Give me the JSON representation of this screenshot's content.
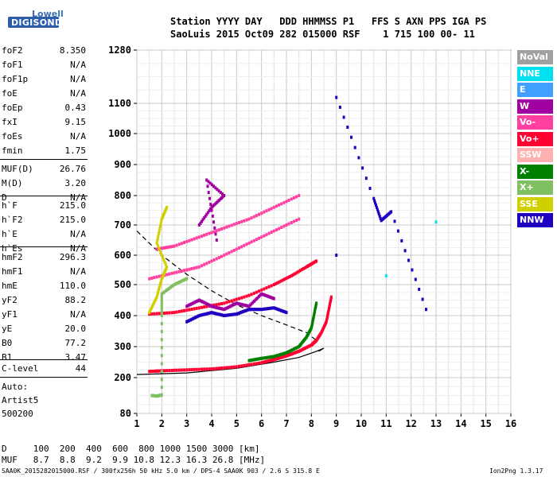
{
  "header": {
    "logo_top": "Lowell",
    "logo_bottom": "DIGISONDE",
    "line1": "Station YYYY DAY   DDD HHMMSS P1   FFS S AXN PPS IGA PS",
    "line2": "SaoLuis 2015 Oct09 282 015000 RSF    1 715 100 00- 11"
  },
  "params_group1": [
    {
      "name": "foF2",
      "value": "8.350"
    },
    {
      "name": "foF1",
      "value": "N/A"
    },
    {
      "name": "foF1p",
      "value": "N/A"
    },
    {
      "name": "foE",
      "value": "N/A"
    },
    {
      "name": "foEp",
      "value": "0.43"
    },
    {
      "name": "fxI",
      "value": "9.15"
    },
    {
      "name": "foEs",
      "value": "N/A"
    },
    {
      "name": "fmin",
      "value": "1.75"
    }
  ],
  "params_group2": [
    {
      "name": "MUF(D)",
      "value": "26.76"
    },
    {
      "name": "M(D)",
      "value": "3.20"
    },
    {
      "name": "D",
      "value": "N/A"
    }
  ],
  "params_group3": [
    {
      "name": "h`F",
      "value": "215.0"
    },
    {
      "name": "h`F2",
      "value": "215.0"
    },
    {
      "name": "h`E",
      "value": "N/A"
    },
    {
      "name": "h`Es",
      "value": "N/A"
    }
  ],
  "params_group4": [
    {
      "name": "hmF2",
      "value": "296.3"
    },
    {
      "name": "hmF1",
      "value": "N/A"
    },
    {
      "name": "hmE",
      "value": "110.0"
    },
    {
      "name": "yF2",
      "value": "88.2"
    },
    {
      "name": "yF1",
      "value": "N/A"
    },
    {
      "name": "yE",
      "value": "20.0"
    },
    {
      "name": "B0",
      "value": "77.2"
    },
    {
      "name": "B1",
      "value": "3.47"
    }
  ],
  "clevel": {
    "name": "C-level",
    "value": "44"
  },
  "auto": {
    "line1": "Auto:",
    "line2": "Artist5",
    "line3": "500200"
  },
  "legend": [
    {
      "label": "NoVal",
      "bg": "#a0a0a0",
      "fg": "#ffffff"
    },
    {
      "label": "NNE",
      "bg": "#00e0f0",
      "fg": "#ffffff"
    },
    {
      "label": "E",
      "bg": "#40a0ff",
      "fg": "#ffffff"
    },
    {
      "label": "W",
      "bg": "#a000a0",
      "fg": "#ffffff"
    },
    {
      "label": "Vo-",
      "bg": "#ff40a0",
      "fg": "#ffffff"
    },
    {
      "label": "Vo+",
      "bg": "#ff0030",
      "fg": "#ffffff"
    },
    {
      "label": "SSW",
      "bg": "#ffb0b0",
      "fg": "#ffffff"
    },
    {
      "label": "X-",
      "bg": "#008000",
      "fg": "#ffffff"
    },
    {
      "label": "X+",
      "bg": "#80c060",
      "fg": "#ffffff"
    },
    {
      "label": "SSE",
      "bg": "#d0d000",
      "fg": "#ffffff"
    },
    {
      "label": "NNW",
      "bg": "#2000c0",
      "fg": "#ffffff"
    }
  ],
  "footer": {
    "d_line": "D     100  200  400  600  800 1000 1500 3000 [km]",
    "muf_line": "MUF   8.7  8.8  9.2  9.9 10.8 12.3 16.3 26.8 [MHz]",
    "info_line": "SAA0K_2015282015000.RSF / 300fx256h 50 kHz 5.0 km / DPS-4 SAA0K 903 / 2.6 S 315.8 E",
    "version": "Ion2Png 1.3.17"
  },
  "chart_data": {
    "type": "scatter",
    "x_ticks": [
      "1",
      "2",
      "3",
      "4",
      "5",
      "6",
      "7",
      "8",
      "9",
      "10",
      "11",
      "12",
      "13",
      "14",
      "15",
      "16"
    ],
    "y_ticks": [
      "80",
      "200",
      "300",
      "400",
      "500",
      "600",
      "700",
      "800",
      "900",
      "1000",
      "1100",
      "1280"
    ],
    "xlim": [
      1,
      16
    ],
    "ylim": [
      80,
      1280
    ],
    "grid": true,
    "series": [
      {
        "color": "#ff0030",
        "points": [
          [
            1.5,
            220
          ],
          [
            2,
            222
          ],
          [
            3,
            225
          ],
          [
            4,
            228
          ],
          [
            5,
            235
          ],
          [
            6,
            248
          ],
          [
            6.5,
            258
          ],
          [
            7,
            270
          ],
          [
            7.5,
            285
          ],
          [
            8,
            305
          ],
          [
            8.2,
            320
          ],
          [
            8.4,
            345
          ],
          [
            8.6,
            380
          ],
          [
            8.7,
            420
          ],
          [
            8.8,
            460
          ]
        ]
      },
      {
        "color": "#ff0030",
        "points": [
          [
            1.5,
            405
          ],
          [
            2.5,
            410
          ],
          [
            3.5,
            425
          ],
          [
            4.5,
            440
          ],
          [
            5.5,
            465
          ],
          [
            6.5,
            500
          ],
          [
            7.2,
            530
          ],
          [
            7.8,
            560
          ],
          [
            8.2,
            580
          ]
        ]
      },
      {
        "color": "#ff40a0",
        "points": [
          [
            1.5,
            520
          ],
          [
            2.5,
            540
          ],
          [
            3.5,
            560
          ],
          [
            4.5,
            600
          ],
          [
            5.5,
            640
          ],
          [
            6.5,
            680
          ],
          [
            7.5,
            720
          ]
        ]
      },
      {
        "color": "#ff40a0",
        "points": [
          [
            1.8,
            620
          ],
          [
            2.5,
            630
          ],
          [
            3.5,
            660
          ],
          [
            4.5,
            690
          ],
          [
            5.5,
            720
          ],
          [
            6.5,
            760
          ],
          [
            7.5,
            800
          ]
        ]
      },
      {
        "color": "#008000",
        "points": [
          [
            5.5,
            255
          ],
          [
            6,
            262
          ],
          [
            6.5,
            268
          ],
          [
            7,
            280
          ],
          [
            7.5,
            300
          ],
          [
            7.8,
            330
          ],
          [
            8,
            360
          ],
          [
            8.1,
            400
          ],
          [
            8.2,
            440
          ]
        ]
      },
      {
        "color": "#80c060",
        "points": [
          [
            1.6,
            140
          ],
          [
            1.8,
            138
          ],
          [
            2,
            142
          ],
          [
            2,
            400
          ],
          [
            2,
            470
          ],
          [
            2.5,
            500
          ],
          [
            3,
            520
          ]
        ]
      },
      {
        "color": "#a000a0",
        "points": [
          [
            3,
            430
          ],
          [
            3.5,
            450
          ],
          [
            4,
            430
          ],
          [
            4.5,
            420
          ],
          [
            5,
            440
          ],
          [
            5.5,
            430
          ],
          [
            6,
            470
          ],
          [
            6.5,
            455
          ],
          [
            3.5,
            700
          ],
          [
            4,
            760
          ],
          [
            4.5,
            800
          ],
          [
            3.8,
            850
          ],
          [
            4.2,
            650
          ]
        ]
      },
      {
        "color": "#2000c0",
        "points": [
          [
            3,
            380
          ],
          [
            3.5,
            400
          ],
          [
            4,
            410
          ],
          [
            4.5,
            400
          ],
          [
            5,
            405
          ],
          [
            5.5,
            420
          ],
          [
            6,
            420
          ],
          [
            6.5,
            425
          ],
          [
            7,
            410
          ],
          [
            9,
            1120
          ],
          [
            10.5,
            790
          ],
          [
            10.8,
            715
          ],
          [
            11.2,
            745
          ],
          [
            12.6,
            420
          ],
          [
            9,
            600
          ]
        ]
      },
      {
        "color": "#d0d000",
        "points": [
          [
            1.5,
            410
          ],
          [
            1.8,
            460
          ],
          [
            2,
            520
          ],
          [
            2.2,
            560
          ],
          [
            1.8,
            640
          ],
          [
            2,
            720
          ],
          [
            2.2,
            760
          ]
        ]
      },
      {
        "color": "#00e0f0",
        "points": [
          [
            11,
            530
          ],
          [
            13,
            710
          ]
        ]
      }
    ],
    "curves": [
      {
        "style": "solid",
        "points": [
          [
            1,
            210
          ],
          [
            3,
            215
          ],
          [
            5,
            230
          ],
          [
            6.5,
            250
          ],
          [
            7.5,
            265
          ],
          [
            8.2,
            285
          ],
          [
            8.5,
            295
          ],
          [
            8.3,
            285
          ]
        ]
      },
      {
        "style": "dashed",
        "points": [
          [
            1,
            680
          ],
          [
            2,
            600
          ],
          [
            3,
            535
          ],
          [
            4,
            480
          ],
          [
            5,
            435
          ],
          [
            6,
            400
          ],
          [
            7,
            370
          ],
          [
            7.8,
            345
          ],
          [
            8.2,
            320
          ]
        ]
      }
    ]
  }
}
